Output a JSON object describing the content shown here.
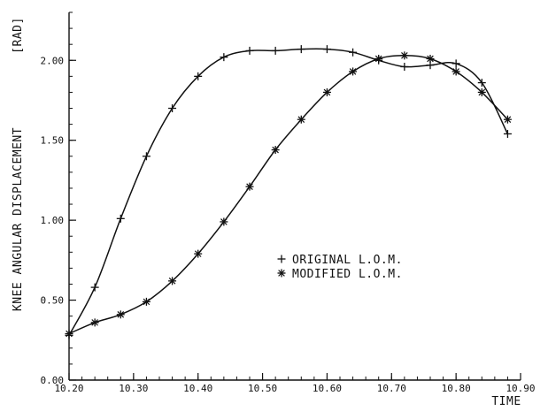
{
  "chart_data": {
    "type": "line",
    "xlabel": "TIME",
    "ylabel": "KNEE ANGULAR DISPLACEMENT",
    "ylabel_unit": "[RAD]",
    "xlim": [
      10.2,
      10.9
    ],
    "ylim": [
      0.0,
      2.3
    ],
    "x_ticks": [
      10.2,
      10.3,
      10.4,
      10.5,
      10.6,
      10.7,
      10.8,
      10.9
    ],
    "x_tick_labels": [
      "10.20",
      "10.30",
      "10.40",
      "10.50",
      "10.60",
      "10.70",
      "10.80",
      "10.90"
    ],
    "y_ticks": [
      0.0,
      0.5,
      1.0,
      1.5,
      2.0
    ],
    "y_tick_labels": [
      "0.00",
      "0.50",
      "1.00",
      "1.50",
      "2.00"
    ],
    "grid": false,
    "legend_position": "center-right",
    "series": [
      {
        "name": "ORIGINAL L.O.M.",
        "marker": "plus",
        "x": [
          10.2,
          10.24,
          10.28,
          10.32,
          10.36,
          10.4,
          10.44,
          10.48,
          10.52,
          10.56,
          10.6,
          10.64,
          10.68,
          10.72,
          10.76,
          10.8,
          10.84,
          10.88
        ],
        "y": [
          0.28,
          0.58,
          1.01,
          1.4,
          1.7,
          1.9,
          2.02,
          2.06,
          2.06,
          2.07,
          2.07,
          2.05,
          2.0,
          1.96,
          1.97,
          1.98,
          1.86,
          1.54
        ]
      },
      {
        "name": "MODIFIED L.O.M.",
        "marker": "star",
        "x": [
          10.2,
          10.24,
          10.28,
          10.32,
          10.36,
          10.4,
          10.44,
          10.48,
          10.52,
          10.56,
          10.6,
          10.64,
          10.68,
          10.72,
          10.76,
          10.8,
          10.84,
          10.88
        ],
        "y": [
          0.29,
          0.36,
          0.41,
          0.49,
          0.62,
          0.79,
          0.99,
          1.21,
          1.44,
          1.63,
          1.8,
          1.93,
          2.01,
          2.03,
          2.01,
          1.93,
          1.8,
          1.63
        ]
      }
    ]
  }
}
